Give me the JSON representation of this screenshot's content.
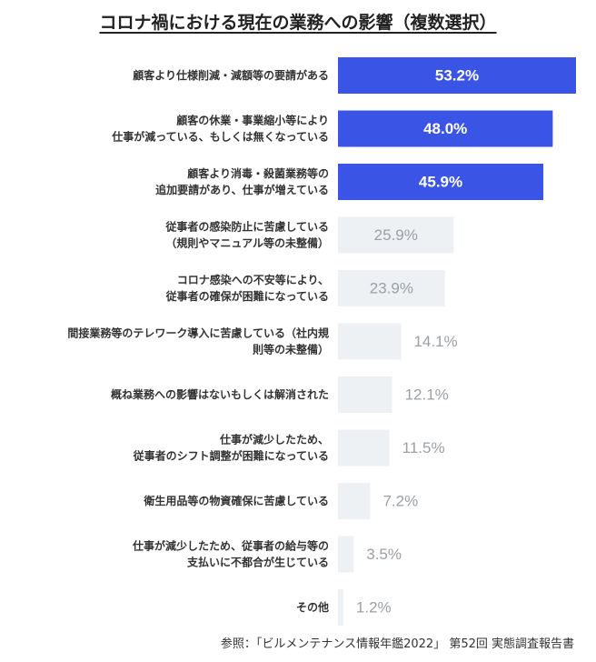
{
  "header": {
    "title": "コロナ禍における現在の業務への影響（複数選択）"
  },
  "footer": {
    "source": "参照：「ビルメンテナンス情報年鑑2022」 第52回 実態調査報告書"
  },
  "chart_data": {
    "type": "bar",
    "orientation": "horizontal",
    "title": "コロナ禍における現在の業務への影響（複数選択）",
    "xlabel": "",
    "ylabel": "",
    "xlim": [
      0,
      53.2
    ],
    "grid": false,
    "colors": {
      "highlight": "#3a55e6",
      "normal": "#eef1f4",
      "label_on_highlight": "#ffffff",
      "label_normal": "#9aa0a6"
    },
    "categories": [
      [
        "顧客より仕様削減・減額等の要請がある"
      ],
      [
        "顧客の休業・事業縮小等により",
        "仕事が減っている、もしくは無くなっている"
      ],
      [
        "顧客より消毒・殺菌業務等の",
        "追加要請があり、仕事が増えている"
      ],
      [
        "従事者の感染防止に苦慮している",
        "（規則やマニュアル等の未整備）"
      ],
      [
        "コロナ感染への不安等により、",
        "従事者の確保が困難になっている"
      ],
      [
        "間接業務等のテレワーク導入に苦慮している（社内規",
        "則等の未整備）"
      ],
      [
        "概ね業務への影響はないもしくは解消された"
      ],
      [
        "仕事が減少したため、",
        "従事者のシフト調整が困難になっている"
      ],
      [
        "衛生用品等の物資確保に苦慮している"
      ],
      [
        "仕事が減少したため、従事者の給与等の",
        "支払いに不都合が生じている"
      ],
      [
        "その他"
      ]
    ],
    "values": [
      53.2,
      48.0,
      45.9,
      25.9,
      23.9,
      14.1,
      12.1,
      11.5,
      7.2,
      3.5,
      1.2
    ],
    "value_labels": [
      "53.2%",
      "48.0%",
      "45.9%",
      "25.9%",
      "23.9%",
      "14.1%",
      "12.1%",
      "11.5%",
      "7.2%",
      "3.5%",
      "1.2%"
    ],
    "highlighted": [
      true,
      true,
      true,
      false,
      false,
      false,
      false,
      false,
      false,
      false,
      false
    ]
  }
}
